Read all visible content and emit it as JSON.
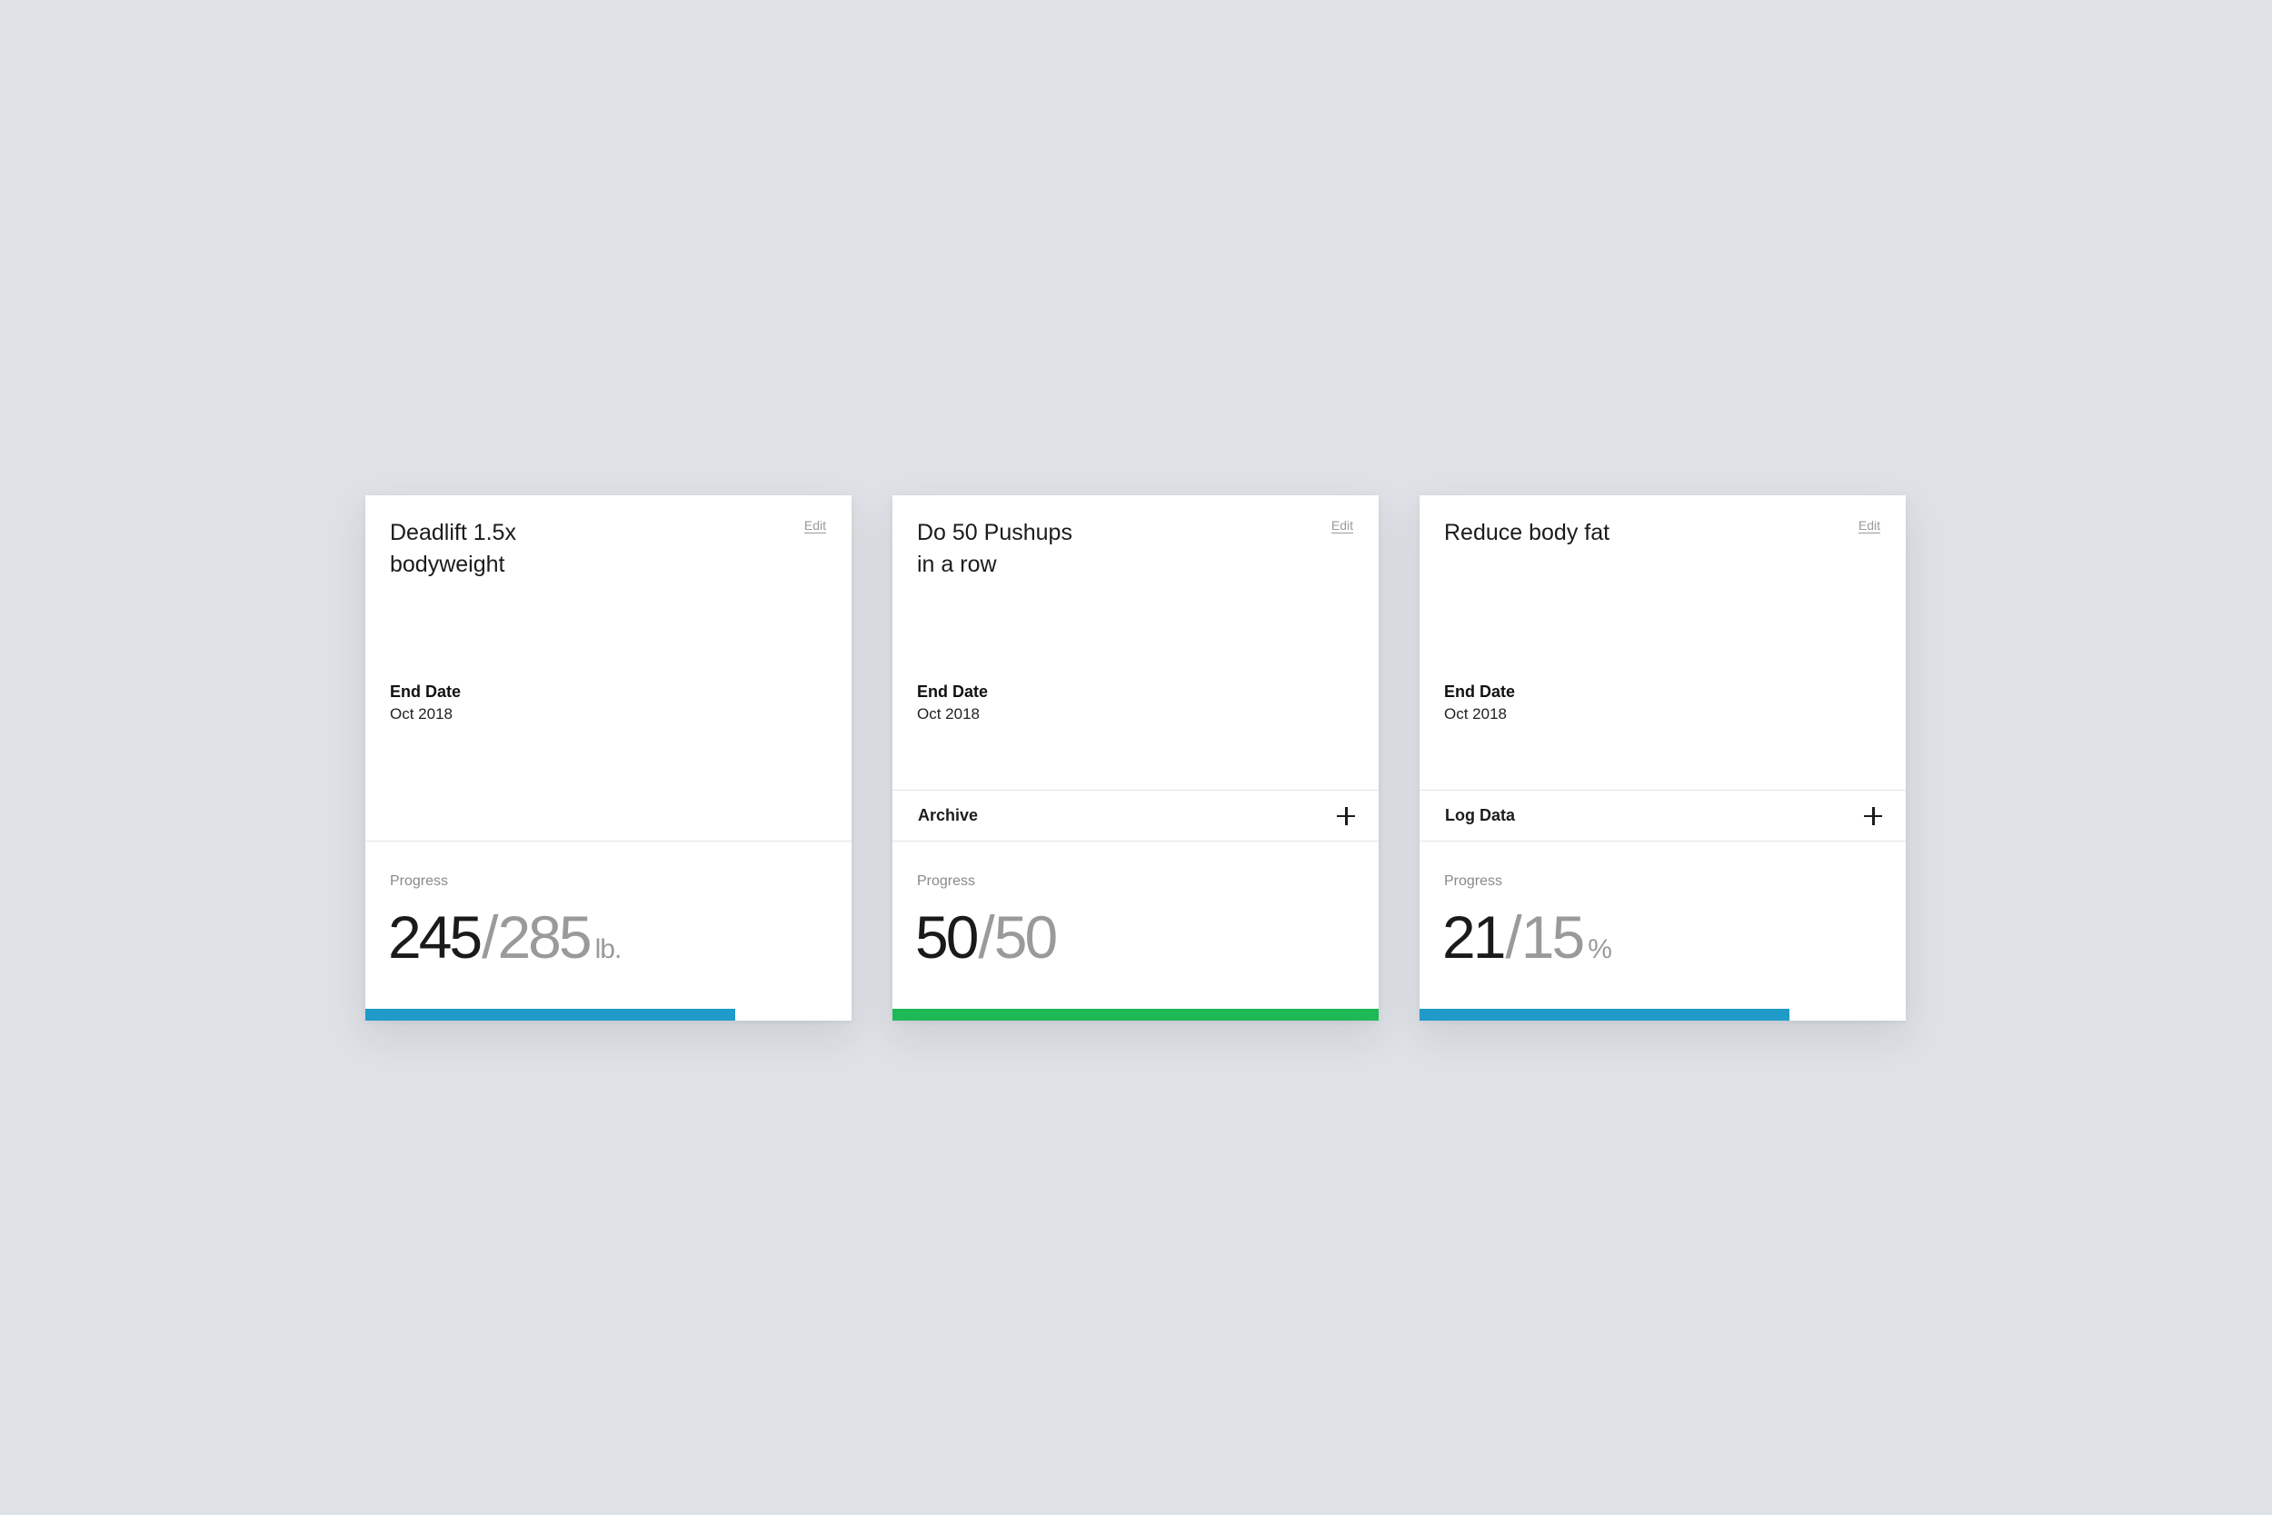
{
  "colors": {
    "background": "#dee1e5",
    "card": "#ffffff",
    "progress_blue": "#1f9ac9",
    "progress_green": "#1db954"
  },
  "cards": [
    {
      "title": "Deadlift 1.5x\nbodyweight",
      "edit_label": "Edit",
      "end_date_label": "End Date",
      "end_date": "Oct 2018",
      "action_label": "",
      "progress_label": "Progress",
      "current": "245",
      "separator": "/",
      "target": "285",
      "unit": "lb.",
      "progress_fraction": 0.76,
      "bar_color": "#1f9ac9"
    },
    {
      "title": "Do 50 Pushups\nin a row",
      "edit_label": "Edit",
      "end_date_label": "End Date",
      "end_date": "Oct 2018",
      "action_label": "Archive",
      "action_icon": "plus-icon",
      "progress_label": "Progress",
      "current": "50",
      "separator": "/",
      "target": "50",
      "unit": "",
      "progress_fraction": 1.0,
      "bar_color": "#1db954"
    },
    {
      "title": "Reduce body fat",
      "edit_label": "Edit",
      "end_date_label": "End Date",
      "end_date": "Oct 2018",
      "action_label": "Log Data",
      "action_icon": "plus-icon",
      "progress_label": "Progress",
      "current": "21",
      "separator": "/",
      "target": "15",
      "unit": "%",
      "progress_fraction": 0.76,
      "bar_color": "#1f9ac9"
    }
  ]
}
